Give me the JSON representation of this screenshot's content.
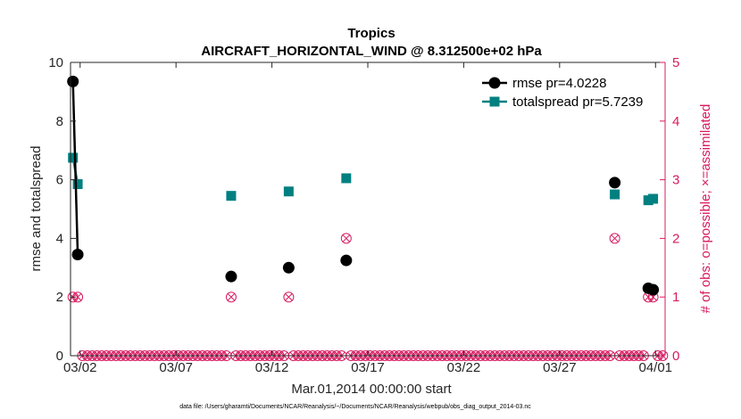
{
  "chart_data": {
    "type": "line",
    "title": "Tropics",
    "subtitle": "AIRCRAFT_HORIZONTAL_WIND @ 8.312500e+02 hPa",
    "xlabel": "Mar.01,2014 00:00:00 start",
    "ylabel": "rmse and totalspread",
    "y2label": "# of obs: o=possible; ×=assimilated",
    "footnote": "data file: /Users/gharamti/Documents/NCAR/Reanalysis/~/Documents/NCAR/Reanalysis/webpub/obs_diag_output_2014-03.nc",
    "xlim": [
      0.5,
      31.5
    ],
    "ylim": [
      0,
      10
    ],
    "y2lim": [
      0,
      5
    ],
    "x_ticks": [
      1.0,
      6.0,
      11.0,
      16.0,
      21.0,
      26.0,
      31.0
    ],
    "x_tick_labels": [
      "03/02",
      "03/07",
      "03/12",
      "03/17",
      "03/22",
      "03/27",
      "04/01"
    ],
    "y_ticks": [
      0,
      2,
      4,
      6,
      8,
      10
    ],
    "y_tick_labels": [
      "0",
      "2",
      "4",
      "6",
      "8",
      "10"
    ],
    "y2_ticks": [
      0,
      1,
      2,
      3,
      4,
      5
    ],
    "y2_tick_labels": [
      "0",
      "1",
      "2",
      "3",
      "4",
      "5"
    ],
    "legend_position": "top-right",
    "colors": {
      "rmse": "#000000",
      "spread": "#008080",
      "obs": "#d81b60"
    },
    "series": [
      {
        "name": "rmse pr=4.0228",
        "color": "#000000",
        "marker": "circle",
        "x": [
          0.625,
          0.875,
          8.875,
          11.875,
          14.875,
          28.875,
          30.625,
          30.875
        ],
        "values": [
          9.35,
          3.45,
          2.7,
          3.0,
          3.25,
          5.9,
          2.3,
          2.25
        ]
      },
      {
        "name": "totalspread pr=5.7239",
        "color": "#008080",
        "marker": "square",
        "x": [
          0.625,
          0.875,
          8.875,
          11.875,
          14.875,
          28.875,
          30.625,
          30.875
        ],
        "values": [
          6.75,
          5.85,
          5.45,
          5.6,
          6.05,
          5.5,
          5.3,
          5.35
        ]
      }
    ],
    "obs_counts": {
      "name": "# of obs",
      "color": "#d81b60",
      "x_start": 0.625,
      "x_step": 0.25,
      "count": 124,
      "nonzero": [
        {
          "x": 0.625,
          "possible": 1,
          "assimilated": 1
        },
        {
          "x": 0.875,
          "possible": 1,
          "assimilated": 1
        },
        {
          "x": 8.875,
          "possible": 1,
          "assimilated": 1
        },
        {
          "x": 11.875,
          "possible": 1,
          "assimilated": 1
        },
        {
          "x": 14.875,
          "possible": 2,
          "assimilated": 2
        },
        {
          "x": 28.875,
          "possible": 2,
          "assimilated": 2
        },
        {
          "x": 30.625,
          "possible": 1,
          "assimilated": 1
        },
        {
          "x": 30.875,
          "possible": 1,
          "assimilated": 1
        }
      ]
    }
  }
}
